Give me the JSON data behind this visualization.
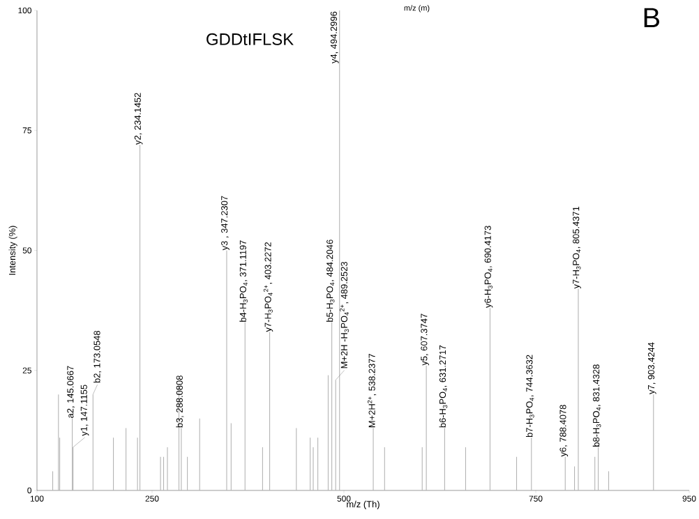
{
  "chart_data": {
    "type": "bar",
    "title": "GDDtIFLSK",
    "xlabel": "m/z (Th)",
    "ylabel": "Intensity (%)",
    "color": "#b4b4b4",
    "x": [
      120.5,
      128,
      129.6,
      146,
      147,
      173,
      199.6,
      216,
      231,
      234.1452,
      261,
      265,
      270,
      285,
      288.0808,
      296,
      312,
      347.2307,
      353,
      371.1197,
      394,
      403.2272,
      438,
      456,
      460,
      466,
      479.5,
      484.2046,
      489.2523,
      494.2996,
      538.2377,
      553,
      602,
      607.3747,
      631.2717,
      658.6,
      690.4173,
      725,
      744.3632,
      788.4078,
      800.5,
      805.4371,
      827,
      831.4328,
      845,
      903.4244
    ],
    "values": [
      4,
      20,
      11,
      15,
      9,
      20,
      11,
      13,
      11,
      72,
      7,
      7,
      9,
      22,
      13,
      7,
      15,
      50,
      14,
      35,
      9,
      33,
      13,
      11,
      9,
      11,
      24,
      35,
      23,
      100,
      13,
      9,
      9,
      26,
      13,
      9,
      38,
      7,
      11,
      7,
      5,
      42,
      7,
      9,
      4,
      20
    ],
    "xlim": [
      100,
      950
    ],
    "ylim": [
      0,
      100
    ],
    "xticks": [
      100,
      250,
      500,
      750,
      950
    ],
    "yticks": [
      0,
      25,
      50,
      75,
      100
    ],
    "annotations": [
      "B",
      "m/z (m)",
      {
        "text": "a2, 145.0667",
        "x": 146,
        "y": 15
      },
      {
        "text": "y1, 147.1155",
        "x": 147,
        "y": 9
      },
      {
        "text": "b2, 173.0548",
        "x": 173,
        "y": 20
      },
      {
        "text": "y2, 234.1452",
        "x": 234.1452,
        "y": 72
      },
      {
        "text": "b3, 288.0808",
        "x": 288.0808,
        "y": 13
      },
      {
        "text": "y3 , 347.2307",
        "x": 347.2307,
        "y": 50
      },
      {
        "text": "b4-H$_{3}$PO$_{4}$, 371.1197",
        "x": 371.1197,
        "y": 35
      },
      {
        "text": "y7-H$_{3}$PO$_{4}$$^{2+}$, 403.2272",
        "x": 403.2272,
        "y": 33
      },
      {
        "text": "b5-H$_{3}$PO$_{4}$, 484.2046",
        "x": 484.2046,
        "y": 35
      },
      {
        "text": "M+2H -H$_{3}$PO$_{4}$$^{2+}$, 489.2523",
        "x": 489.2523,
        "y": 23
      },
      {
        "text": "y4, 494.2996",
        "x": 494.2996,
        "y": 100
      },
      {
        "text": "M+2H$^{2+}$, 538.2377",
        "x": 538.2377,
        "y": 13
      },
      {
        "text": "y5, 607.3747",
        "x": 607.3747,
        "y": 26
      },
      {
        "text": "b6-H$_{3}$PO$_{4}$, 631.2717",
        "x": 631.2717,
        "y": 13
      },
      {
        "text": "y6-H$_{3}$PO$_{4}$, 690.4173",
        "x": 690.4173,
        "y": 38
      },
      {
        "text": "b7-H$_{3}$PO$_{4}$, 744.3632",
        "x": 744.3632,
        "y": 11
      },
      {
        "text": "y6, 788.4078",
        "x": 788.4078,
        "y": 7
      },
      {
        "text": "y7-H$_{3}$PO$_{4}$, 805.4371",
        "x": 805.4371,
        "y": 42
      },
      {
        "text": "b8-H$_{3}$PO$_{4}$, 831.4328",
        "x": 831.4328,
        "y": 9
      },
      {
        "text": "y7, 903.4244",
        "x": 903.4244,
        "y": 20
      }
    ]
  }
}
